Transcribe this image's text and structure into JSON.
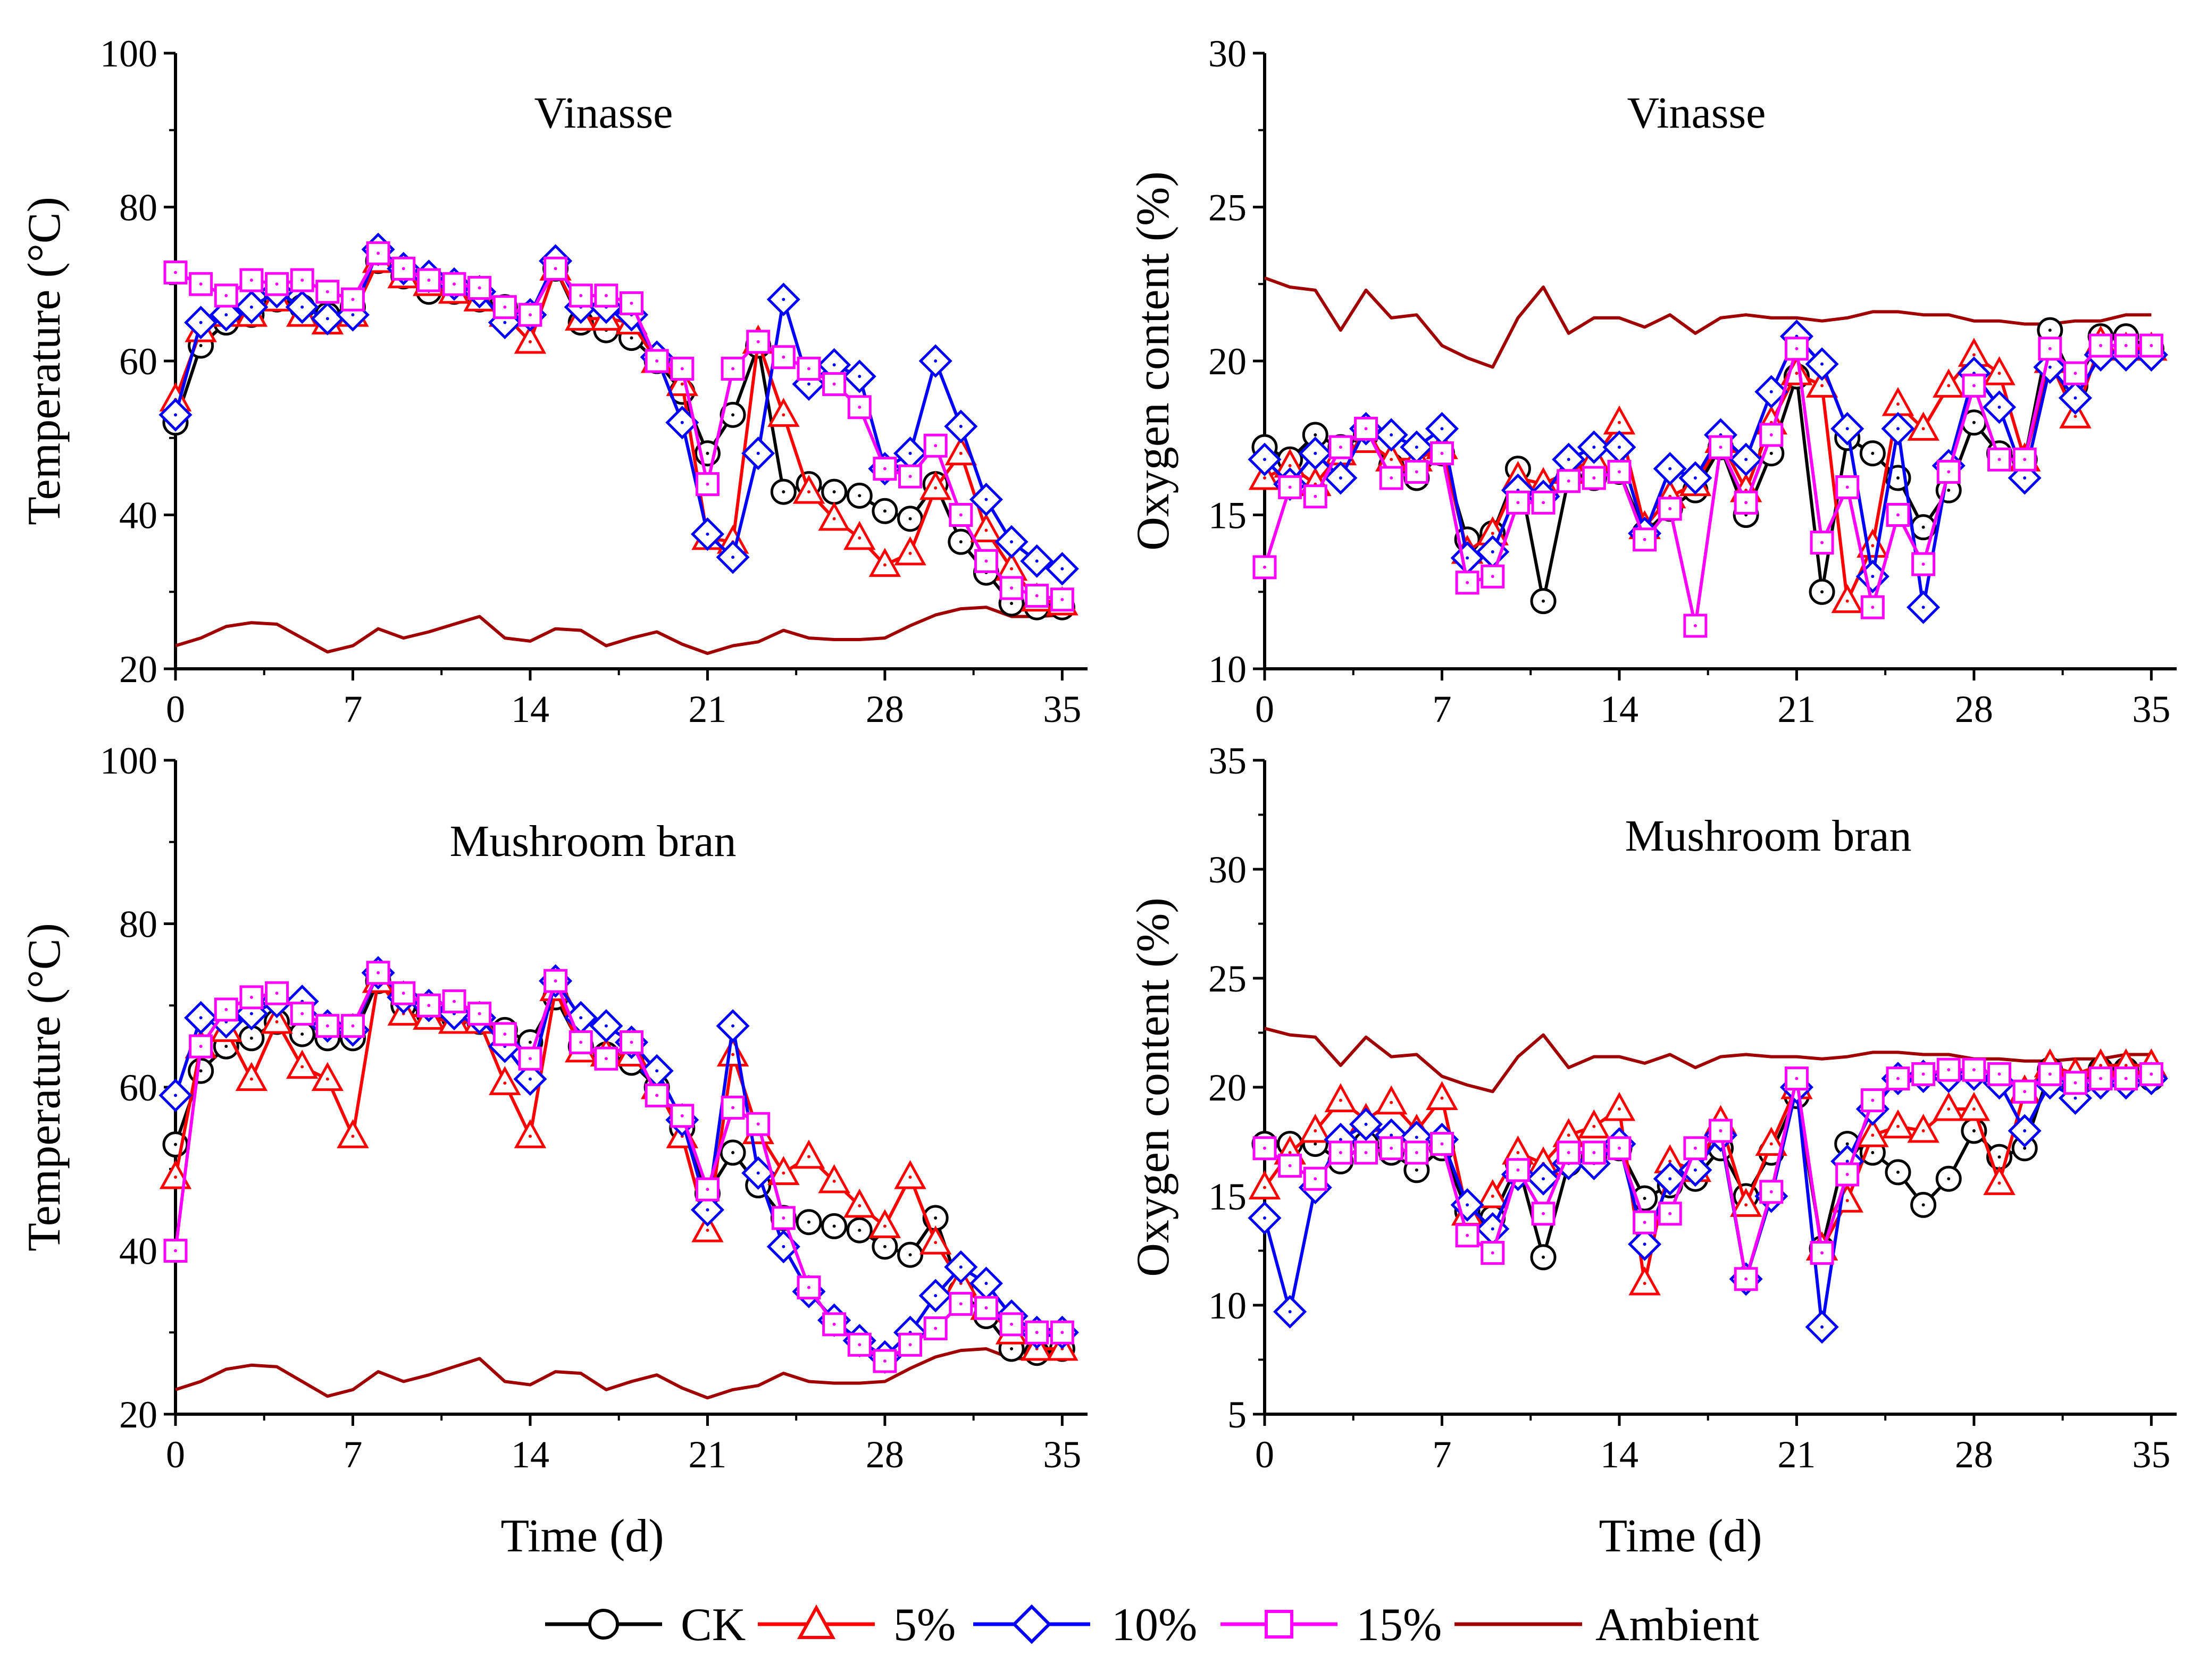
{
  "legend": [
    {
      "key": "ck",
      "label": "CK"
    },
    {
      "key": "p5",
      "label": "5%"
    },
    {
      "key": "p10",
      "label": "10%"
    },
    {
      "key": "p15",
      "label": "15%"
    },
    {
      "key": "ambient",
      "label": "Ambient"
    }
  ],
  "colors": {
    "ck": "#000000",
    "p5": "#ff0000",
    "p10": "#0000ff",
    "p15": "#ff00ff",
    "ambient": "#a00000"
  },
  "markers": {
    "ck": "circle",
    "p5": "triangle",
    "p10": "diamond",
    "p15": "square",
    "ambient": "none"
  },
  "chart_data": [
    {
      "id": "temp-vinasse",
      "type": "line",
      "title": "Vinasse",
      "xlabel": "Time (d)",
      "ylabel": "Temperature (°C)",
      "xlim": [
        0,
        36
      ],
      "ylim": [
        20,
        100
      ],
      "xticks": [
        0,
        7,
        14,
        21,
        28,
        35
      ],
      "yticks": [
        20,
        40,
        60,
        80,
        100
      ],
      "x": [
        0,
        1,
        2,
        3,
        4,
        5,
        6,
        7,
        8,
        9,
        10,
        11,
        12,
        13,
        14,
        15,
        16,
        17,
        18,
        19,
        20,
        21,
        22,
        23,
        24,
        25,
        26,
        27,
        28,
        29,
        30,
        31,
        32,
        33,
        34,
        35
      ],
      "series": [
        {
          "key": "ck",
          "name": "CK",
          "values": [
            52,
            62,
            65,
            66,
            68,
            67,
            66,
            67,
            73,
            71,
            69,
            69,
            68,
            67,
            66,
            72,
            65,
            64,
            63,
            60,
            56,
            48,
            53,
            62,
            43,
            44,
            43,
            42.5,
            40.5,
            39.5,
            44,
            36.5,
            32.5,
            28.5,
            28,
            28
          ]
        },
        {
          "key": "p5",
          "name": "5%",
          "values": [
            55,
            64,
            66,
            66,
            68,
            66,
            65,
            66,
            73,
            71,
            70,
            69,
            68,
            66,
            62.5,
            72,
            65.5,
            65.5,
            65,
            60,
            57,
            37,
            36.5,
            62.5,
            53,
            43,
            39.5,
            37,
            33.5,
            35,
            43.5,
            48,
            38,
            33,
            29,
            28.5
          ]
        },
        {
          "key": "p10",
          "name": "10%",
          "values": [
            53,
            65,
            66,
            67,
            69,
            67,
            65.5,
            66,
            74.5,
            72,
            71,
            70,
            69,
            65,
            66,
            73,
            67,
            67,
            66,
            60.5,
            52,
            37.5,
            34.5,
            48,
            68,
            57,
            59.5,
            58,
            46,
            48,
            60,
            51.5,
            42,
            36.5,
            34,
            33
          ]
        },
        {
          "key": "p15",
          "name": "15%",
          "values": [
            71.5,
            70,
            68.5,
            70.5,
            70,
            70.5,
            69,
            68,
            74,
            72,
            70.5,
            70,
            69.5,
            67,
            66,
            72,
            68.5,
            68.5,
            67.5,
            60,
            59,
            44,
            59,
            62.5,
            60.5,
            59,
            57,
            54,
            46,
            45,
            49,
            40,
            34,
            30.5,
            29.5,
            29
          ]
        },
        {
          "key": "ambient",
          "name": "Ambient",
          "values": [
            23,
            24,
            25.5,
            26,
            25.8,
            24,
            22.2,
            23,
            25.2,
            24,
            24.8,
            25.8,
            26.8,
            24,
            23.6,
            25.2,
            25,
            23,
            24,
            24.8,
            23.2,
            22,
            23,
            23.5,
            25,
            24,
            23.8,
            23.8,
            24,
            25.6,
            27,
            27.8,
            28,
            26.8,
            26.8,
            27
          ]
        }
      ]
    },
    {
      "id": "oxy-vinasse",
      "type": "line",
      "title": "Vinasse",
      "xlabel": "",
      "ylabel": "Oxygen content (%)",
      "xlim": [
        0,
        36
      ],
      "ylim": [
        10,
        30
      ],
      "xticks": [
        0,
        7,
        14,
        21,
        28,
        35
      ],
      "yticks": [
        10,
        15,
        20,
        25,
        30
      ],
      "x": [
        0,
        1,
        2,
        3,
        4,
        5,
        6,
        7,
        8,
        9,
        10,
        11,
        12,
        13,
        14,
        15,
        16,
        17,
        18,
        19,
        20,
        21,
        22,
        23,
        24,
        25,
        26,
        27,
        28,
        29,
        30,
        31,
        32,
        33,
        34,
        35
      ],
      "series": [
        {
          "key": "ck",
          "name": "CK",
          "values": [
            17.2,
            16.8,
            17.6,
            17.2,
            17.6,
            16.6,
            16.2,
            17,
            14.2,
            14.4,
            16.5,
            12.2,
            16.2,
            16.2,
            16.4,
            14.4,
            15.2,
            15.8,
            17.2,
            15,
            17,
            19.5,
            12.5,
            17.5,
            17,
            16.2,
            14.6,
            15.8,
            18,
            17,
            16.8,
            21,
            19.2,
            20.8,
            20.8,
            20.4
          ]
        },
        {
          "key": "p5",
          "name": "5%",
          "values": [
            16.2,
            16.6,
            16,
            17,
            17.4,
            16.8,
            16.8,
            17.2,
            13.8,
            14.4,
            16.2,
            16,
            16.4,
            16.8,
            18,
            14.6,
            15.6,
            16,
            17.4,
            15.8,
            18,
            19.6,
            19.2,
            12.2,
            14,
            18.6,
            17.8,
            19.2,
            20.2,
            19.6,
            16.8,
            20,
            18.2,
            20.6,
            20.4,
            20.4
          ]
        },
        {
          "key": "p10",
          "name": "10%",
          "values": [
            16.8,
            16,
            17,
            16.2,
            17.8,
            17.6,
            17.2,
            17.8,
            13.6,
            13.8,
            15.8,
            15.6,
            16.8,
            17.2,
            17.2,
            14.4,
            16.5,
            16.2,
            17.6,
            16.8,
            19,
            20.8,
            19.9,
            17.8,
            13,
            17.8,
            12,
            16.6,
            19.6,
            18.5,
            16.2,
            19.8,
            18.8,
            20.2,
            20.2,
            20.2
          ]
        },
        {
          "key": "p15",
          "name": "15%",
          "values": [
            13.3,
            15.9,
            15.6,
            17.2,
            17.8,
            16.2,
            16.4,
            17,
            12.8,
            13,
            15.4,
            15.4,
            16.1,
            16.2,
            16.4,
            14.2,
            15.2,
            11.4,
            17.2,
            15.4,
            17.6,
            20.4,
            14.1,
            15.9,
            12,
            15,
            13.4,
            16.4,
            19.2,
            16.8,
            16.8,
            20.4,
            19.6,
            20.5,
            20.5,
            20.5
          ]
        },
        {
          "key": "ambient",
          "name": "Ambient",
          "values": [
            22.7,
            22.4,
            22.3,
            21,
            22.3,
            21.4,
            21.5,
            20.5,
            20.1,
            19.8,
            21.4,
            22.4,
            20.9,
            21.4,
            21.4,
            21.1,
            21.5,
            20.9,
            21.4,
            21.5,
            21.4,
            21.4,
            21.3,
            21.4,
            21.6,
            21.6,
            21.5,
            21.5,
            21.3,
            21.3,
            21.2,
            21.2,
            21.3,
            21.3,
            21.5,
            21.5
          ]
        }
      ]
    },
    {
      "id": "temp-mushroom",
      "type": "line",
      "title": "Mushroom bran",
      "xlabel": "Time (d)",
      "ylabel": "Temperature (°C)",
      "xlim": [
        0,
        36
      ],
      "ylim": [
        20,
        100
      ],
      "xticks": [
        0,
        7,
        14,
        21,
        28,
        35
      ],
      "yticks": [
        20,
        40,
        60,
        80,
        100
      ],
      "x": [
        0,
        1,
        2,
        3,
        4,
        5,
        6,
        7,
        8,
        9,
        10,
        11,
        12,
        13,
        14,
        15,
        16,
        17,
        18,
        19,
        20,
        21,
        22,
        23,
        24,
        25,
        26,
        27,
        28,
        29,
        30,
        31,
        32,
        33,
        34,
        35
      ],
      "series": [
        {
          "key": "ck",
          "name": "CK",
          "values": [
            53,
            62,
            65,
            66,
            68,
            66.5,
            66,
            66,
            73,
            70,
            69,
            68.5,
            68,
            67,
            65.5,
            71,
            65,
            64,
            63,
            60,
            55,
            47,
            52,
            48,
            44,
            43.5,
            43,
            42.5,
            40.5,
            39.5,
            44,
            35,
            32,
            28,
            27.5,
            28
          ]
        },
        {
          "key": "p5",
          "name": "5%",
          "values": [
            49,
            65,
            67,
            61,
            68,
            62.5,
            61,
            54,
            73,
            69,
            68.5,
            68,
            68,
            60.5,
            54,
            72,
            64.5,
            64,
            64,
            60,
            54,
            42.5,
            64,
            54.5,
            49.5,
            51.5,
            48.5,
            45.5,
            43,
            49,
            41,
            36,
            33,
            30,
            28,
            28
          ]
        },
        {
          "key": "p10",
          "name": "10%",
          "values": [
            59,
            68.5,
            68,
            69,
            70.5,
            70.5,
            67.5,
            67,
            74,
            71,
            70,
            69,
            68.5,
            65,
            61,
            73,
            68.5,
            67.5,
            65.5,
            62,
            56,
            45,
            67.5,
            49.5,
            40.5,
            35,
            31.5,
            29,
            27,
            30,
            34.5,
            38,
            36,
            32,
            30,
            30
          ]
        },
        {
          "key": "p15",
          "name": "15%",
          "values": [
            40,
            65,
            69.5,
            71,
            71.5,
            69,
            67.5,
            67.5,
            74,
            71.5,
            70,
            70.5,
            69,
            66.5,
            63.5,
            73,
            65.5,
            63.5,
            65.5,
            59,
            56.5,
            47.5,
            57.5,
            55.5,
            44,
            35.5,
            31,
            28.5,
            26.5,
            28.5,
            30.5,
            33.5,
            33,
            31,
            30,
            30
          ]
        },
        {
          "key": "ambient",
          "name": "Ambient",
          "values": [
            23,
            24,
            25.5,
            26,
            25.8,
            24,
            22.2,
            23,
            25.2,
            24,
            24.8,
            25.8,
            26.8,
            24,
            23.6,
            25.2,
            25,
            23,
            24,
            24.8,
            23.2,
            22,
            23,
            23.5,
            25,
            24,
            23.8,
            23.8,
            24,
            25.6,
            27,
            27.8,
            28,
            26.8,
            26.8,
            27
          ]
        }
      ]
    },
    {
      "id": "oxy-mushroom",
      "type": "line",
      "title": "Mushroom bran",
      "xlabel": "Time (d)",
      "ylabel": "Oxygen content (%)",
      "xlim": [
        0,
        36
      ],
      "ylim": [
        5,
        35
      ],
      "xticks": [
        0,
        7,
        14,
        21,
        28,
        35
      ],
      "yticks": [
        5,
        10,
        15,
        20,
        25,
        30,
        35
      ],
      "x": [
        0,
        1,
        2,
        3,
        4,
        5,
        6,
        7,
        8,
        9,
        10,
        11,
        12,
        13,
        14,
        15,
        16,
        17,
        18,
        19,
        20,
        21,
        22,
        23,
        24,
        25,
        26,
        27,
        28,
        29,
        30,
        31,
        32,
        33,
        34,
        35
      ],
      "series": [
        {
          "key": "ck",
          "name": "CK",
          "values": [
            17.4,
            17.4,
            17.4,
            16.6,
            17.4,
            17,
            16.2,
            17.2,
            14.3,
            14,
            16.5,
            12.2,
            16.5,
            16.8,
            17.2,
            14.9,
            15.5,
            15.8,
            17.2,
            15,
            17,
            19.6,
            12.6,
            17.4,
            17,
            16.1,
            14.6,
            15.8,
            18,
            16.8,
            17.2,
            20.8,
            20,
            20.8,
            20.8,
            20.4
          ]
        },
        {
          "key": "p5",
          "name": "5%",
          "values": [
            15.4,
            17,
            18,
            19.4,
            18.5,
            19.3,
            18,
            19.5,
            14.2,
            15,
            17,
            16.5,
            17.8,
            18.2,
            19,
            11,
            16.6,
            16.2,
            18.4,
            14.6,
            17.4,
            20,
            12.6,
            14.8,
            17.8,
            18.2,
            18,
            19,
            19,
            15.6,
            19.8,
            21,
            20.6,
            21,
            21,
            21
          ]
        },
        {
          "key": "p10",
          "name": "10%",
          "values": [
            14,
            9.7,
            15.4,
            17.6,
            18.3,
            17.8,
            17.7,
            17.6,
            14.6,
            13.5,
            16,
            15.8,
            16.5,
            16.5,
            17.4,
            12.8,
            15.8,
            16.2,
            17.8,
            11.2,
            15,
            20,
            9,
            16.6,
            19,
            20.4,
            20.5,
            20.5,
            20.6,
            20.2,
            18,
            20.2,
            19.5,
            20.2,
            20.2,
            20.4
          ]
        },
        {
          "key": "p15",
          "name": "15%",
          "values": [
            17.2,
            16.4,
            15.8,
            17,
            17,
            17.2,
            17,
            17.4,
            13.2,
            12.4,
            16.2,
            14.2,
            17,
            17,
            17.2,
            13.8,
            14.2,
            17.2,
            18,
            11.2,
            15.2,
            20.4,
            12.4,
            16,
            19.4,
            20.4,
            20.6,
            20.8,
            20.8,
            20.6,
            19.8,
            20.6,
            20.2,
            20.4,
            20.4,
            20.6
          ]
        },
        {
          "key": "ambient",
          "name": "Ambient",
          "values": [
            22.7,
            22.4,
            22.3,
            21,
            22.3,
            21.4,
            21.5,
            20.5,
            20.1,
            19.8,
            21.4,
            22.4,
            20.9,
            21.4,
            21.4,
            21.1,
            21.5,
            20.9,
            21.4,
            21.5,
            21.4,
            21.4,
            21.3,
            21.4,
            21.6,
            21.6,
            21.5,
            21.5,
            21.3,
            21.3,
            21.2,
            21.2,
            21.3,
            21.3,
            21.5,
            21.5
          ]
        }
      ]
    }
  ]
}
